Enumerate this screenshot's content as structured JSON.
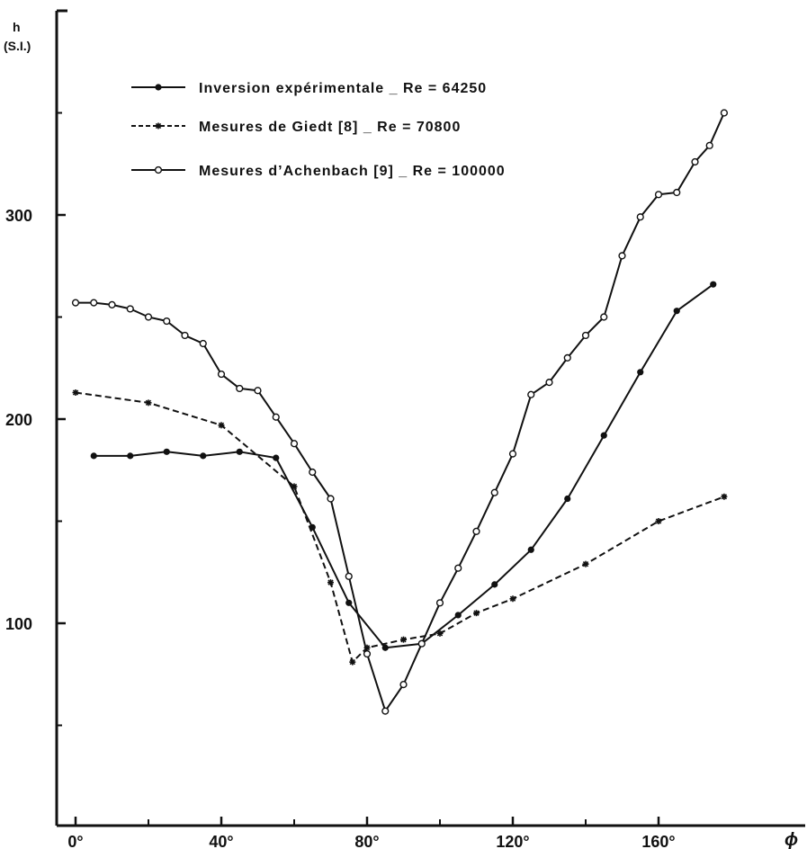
{
  "chart_data": {
    "type": "line",
    "y_axis_label": "h",
    "y_axis_unit": "(S.I.)",
    "x_axis_label": "ϕ",
    "xlim": [
      0,
      178
    ],
    "ylim": [
      0,
      360
    ],
    "x_ticks": [
      0,
      40,
      80,
      120,
      160
    ],
    "x_tick_labels": [
      "0°",
      "40°",
      "80°",
      "120°",
      "160°"
    ],
    "x_minor_ticks": [
      20,
      60,
      100,
      140
    ],
    "y_ticks": [
      100,
      200,
      300
    ],
    "y_tick_labels": [
      "100",
      "200",
      "300"
    ],
    "y_minor_ticks": [
      50,
      150,
      250,
      350
    ],
    "grid": false,
    "legend_position": "top-left",
    "series": [
      {
        "name": "Inversion expérimentale _ Re = 64250",
        "style": "solid",
        "marker": "filled-circle",
        "color": "#111111",
        "x": [
          5,
          15,
          25,
          35,
          45,
          55,
          65,
          75,
          85,
          95,
          105,
          115,
          125,
          135,
          145,
          155,
          165,
          175
        ],
        "y": [
          182,
          182,
          184,
          182,
          184,
          181,
          147,
          110,
          88,
          90,
          104,
          119,
          136,
          161,
          192,
          223,
          253,
          266
        ]
      },
      {
        "name": "Mesures de Giedt [8] _ Re = 70800",
        "style": "dashed",
        "marker": "asterisk",
        "color": "#111111",
        "x": [
          0,
          20,
          40,
          60,
          70,
          76,
          80,
          90,
          100,
          110,
          120,
          140,
          160,
          178
        ],
        "y": [
          213,
          208,
          197,
          167,
          120,
          81,
          88,
          92,
          95,
          105,
          112,
          129,
          150,
          162
        ]
      },
      {
        "name": "Mesures d’Achenbach [9] _ Re = 100000",
        "style": "solid",
        "marker": "open-circle",
        "color": "#111111",
        "x": [
          0,
          5,
          10,
          15,
          20,
          25,
          30,
          35,
          40,
          45,
          50,
          55,
          60,
          65,
          70,
          75,
          80,
          85,
          90,
          95,
          100,
          105,
          110,
          115,
          120,
          125,
          130,
          135,
          140,
          145,
          150,
          155,
          160,
          165,
          170,
          174,
          178
        ],
        "y": [
          257,
          257,
          256,
          254,
          250,
          248,
          241,
          237,
          222,
          215,
          214,
          201,
          188,
          174,
          161,
          123,
          85,
          57,
          70,
          90,
          110,
          127,
          145,
          164,
          183,
          212,
          218,
          230,
          241,
          250,
          280,
          299,
          310,
          311,
          326,
          334,
          350
        ]
      }
    ]
  }
}
